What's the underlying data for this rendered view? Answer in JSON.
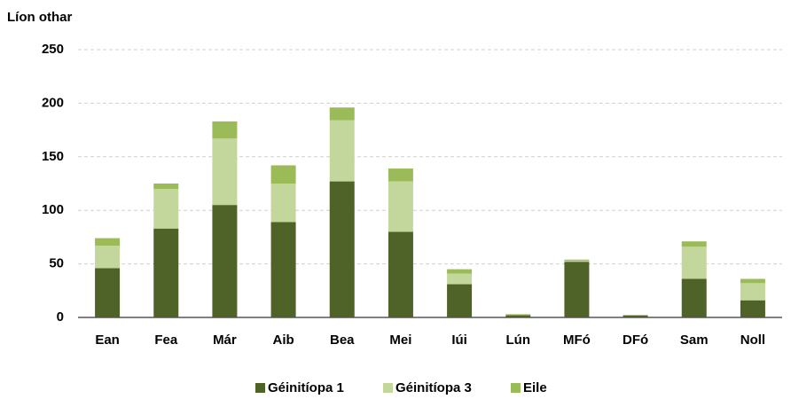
{
  "chart_data": {
    "type": "stacked_bar",
    "y_axis_label": "Líon othar",
    "categories": [
      "Ean",
      "Fea",
      "Már",
      "Aib",
      "Bea",
      "Mei",
      "Iúi",
      "Lún",
      "MFó",
      "DFó",
      "Sam",
      "Noll"
    ],
    "series": [
      {
        "name": "Géinitíopa 1",
        "color": "#4f6228",
        "values": [
          46,
          83,
          105,
          89,
          127,
          80,
          31,
          2,
          52,
          2,
          36,
          16
        ]
      },
      {
        "name": "Géinitíopa 3",
        "color": "#c3d69b",
        "values": [
          21,
          37,
          62,
          36,
          57,
          47,
          10,
          0,
          1,
          0,
          30,
          16
        ]
      },
      {
        "name": "Eile",
        "color": "#9bbb59",
        "values": [
          7,
          5,
          16,
          17,
          12,
          12,
          4,
          1,
          1,
          0,
          5,
          4
        ]
      }
    ],
    "ylim": [
      0,
      250
    ],
    "yticks": [
      0,
      50,
      100,
      150,
      200,
      250
    ],
    "grid": true,
    "legend": "bottom"
  }
}
